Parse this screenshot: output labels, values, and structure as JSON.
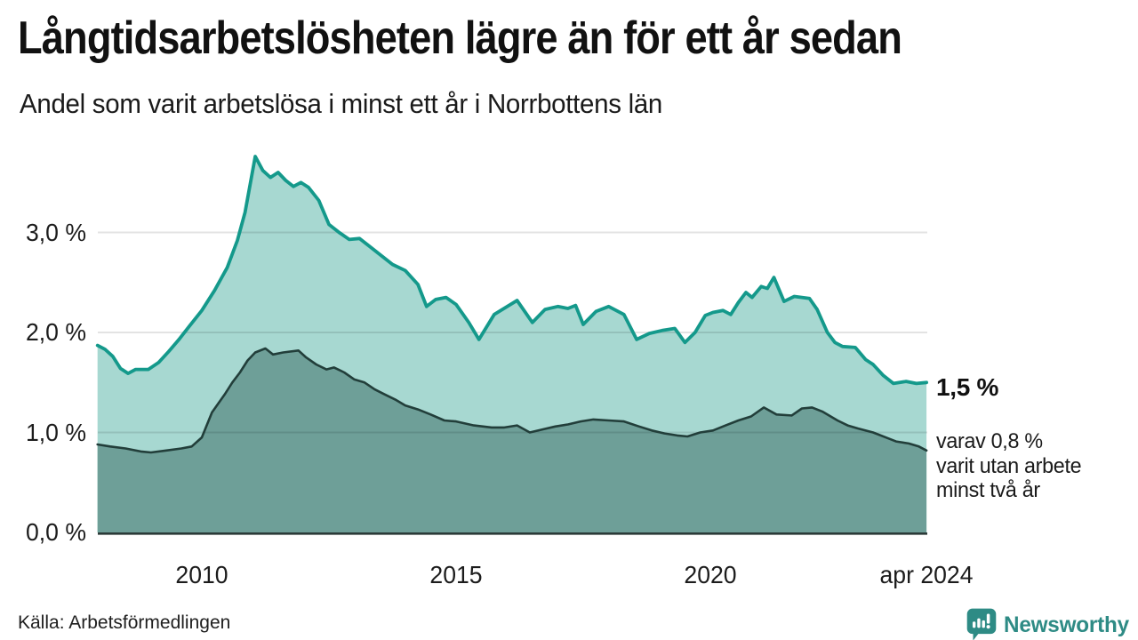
{
  "header": {
    "title": "Långtidsarbetslösheten lägre än för ett år sedan",
    "subtitle": "Andel som varit arbetslösa i minst ett år i Norrbottens län"
  },
  "chart_data": {
    "type": "area",
    "title": "Långtidsarbetslösheten lägre än för ett år sedan",
    "subtitle": "Andel som varit arbetslösa i minst ett år i Norrbottens län",
    "unit": "%",
    "x_axis": {
      "range": [
        2007.95,
        2024.29
      ],
      "ticks": [
        {
          "label": "2010",
          "year": 2010
        },
        {
          "label": "2015",
          "year": 2015
        },
        {
          "label": "2020",
          "year": 2020
        },
        {
          "label": "apr 2024",
          "year": 2024.25
        }
      ]
    },
    "y_axis": {
      "range": [
        0,
        3.9
      ],
      "gridlines": [
        1,
        2,
        3
      ],
      "ticks": [
        {
          "label": "0,0 %",
          "value": 0
        },
        {
          "label": "1,0 %",
          "value": 1
        },
        {
          "label": "2,0 %",
          "value": 2
        },
        {
          "label": "3,0 %",
          "value": 3
        }
      ]
    },
    "series": [
      {
        "name": "Arbetslösa minst ett år",
        "current_value_label": "1,5 %",
        "color": "#14998b",
        "fill": "#a7d8d1",
        "points": [
          [
            2007.95,
            1.87
          ],
          [
            2008.1,
            1.83
          ],
          [
            2008.25,
            1.76
          ],
          [
            2008.4,
            1.64
          ],
          [
            2008.55,
            1.59
          ],
          [
            2008.7,
            1.63
          ],
          [
            2008.95,
            1.63
          ],
          [
            2009.15,
            1.7
          ],
          [
            2009.35,
            1.81
          ],
          [
            2009.55,
            1.93
          ],
          [
            2009.75,
            2.06
          ],
          [
            2010.0,
            2.22
          ],
          [
            2010.25,
            2.42
          ],
          [
            2010.5,
            2.65
          ],
          [
            2010.7,
            2.92
          ],
          [
            2010.85,
            3.2
          ],
          [
            2011.05,
            3.76
          ],
          [
            2011.2,
            3.62
          ],
          [
            2011.35,
            3.55
          ],
          [
            2011.5,
            3.6
          ],
          [
            2011.65,
            3.52
          ],
          [
            2011.8,
            3.46
          ],
          [
            2011.95,
            3.5
          ],
          [
            2012.1,
            3.45
          ],
          [
            2012.3,
            3.32
          ],
          [
            2012.5,
            3.08
          ],
          [
            2012.7,
            3.0
          ],
          [
            2012.9,
            2.93
          ],
          [
            2013.1,
            2.94
          ],
          [
            2013.3,
            2.86
          ],
          [
            2013.5,
            2.78
          ],
          [
            2013.75,
            2.68
          ],
          [
            2014.0,
            2.62
          ],
          [
            2014.25,
            2.48
          ],
          [
            2014.42,
            2.26
          ],
          [
            2014.6,
            2.33
          ],
          [
            2014.8,
            2.35
          ],
          [
            2015.0,
            2.28
          ],
          [
            2015.25,
            2.1
          ],
          [
            2015.45,
            1.93
          ],
          [
            2015.75,
            2.18
          ],
          [
            2016.2,
            2.32
          ],
          [
            2016.5,
            2.1
          ],
          [
            2016.75,
            2.23
          ],
          [
            2017.0,
            2.26
          ],
          [
            2017.2,
            2.24
          ],
          [
            2017.35,
            2.27
          ],
          [
            2017.5,
            2.08
          ],
          [
            2017.75,
            2.21
          ],
          [
            2018.0,
            2.26
          ],
          [
            2018.3,
            2.18
          ],
          [
            2018.55,
            1.93
          ],
          [
            2018.8,
            1.99
          ],
          [
            2019.05,
            2.02
          ],
          [
            2019.3,
            2.04
          ],
          [
            2019.5,
            1.9
          ],
          [
            2019.7,
            2.0
          ],
          [
            2019.9,
            2.17
          ],
          [
            2020.05,
            2.2
          ],
          [
            2020.25,
            2.22
          ],
          [
            2020.4,
            2.18
          ],
          [
            2020.55,
            2.3
          ],
          [
            2020.7,
            2.4
          ],
          [
            2020.82,
            2.35
          ],
          [
            2021.0,
            2.46
          ],
          [
            2021.12,
            2.44
          ],
          [
            2021.25,
            2.55
          ],
          [
            2021.45,
            2.31
          ],
          [
            2021.65,
            2.36
          ],
          [
            2021.95,
            2.34
          ],
          [
            2022.1,
            2.23
          ],
          [
            2022.3,
            2.0
          ],
          [
            2022.45,
            1.9
          ],
          [
            2022.6,
            1.86
          ],
          [
            2022.85,
            1.85
          ],
          [
            2023.05,
            1.73
          ],
          [
            2023.2,
            1.68
          ],
          [
            2023.4,
            1.57
          ],
          [
            2023.6,
            1.49
          ],
          [
            2023.85,
            1.51
          ],
          [
            2024.05,
            1.49
          ],
          [
            2024.25,
            1.5
          ]
        ]
      },
      {
        "name": "varav arbetslösa minst två år",
        "current_value_label": "0,8 %",
        "color": "#223e3a",
        "fill": "#6e9f98",
        "points": [
          [
            2007.95,
            0.88
          ],
          [
            2008.2,
            0.86
          ],
          [
            2008.5,
            0.84
          ],
          [
            2008.8,
            0.81
          ],
          [
            2009.0,
            0.8
          ],
          [
            2009.3,
            0.82
          ],
          [
            2009.6,
            0.84
          ],
          [
            2009.8,
            0.86
          ],
          [
            2010.0,
            0.95
          ],
          [
            2010.2,
            1.2
          ],
          [
            2010.45,
            1.38
          ],
          [
            2010.6,
            1.5
          ],
          [
            2010.75,
            1.6
          ],
          [
            2010.9,
            1.72
          ],
          [
            2011.05,
            1.8
          ],
          [
            2011.25,
            1.84
          ],
          [
            2011.4,
            1.78
          ],
          [
            2011.6,
            1.8
          ],
          [
            2011.9,
            1.82
          ],
          [
            2012.05,
            1.75
          ],
          [
            2012.25,
            1.68
          ],
          [
            2012.45,
            1.63
          ],
          [
            2012.6,
            1.65
          ],
          [
            2012.8,
            1.6
          ],
          [
            2013.0,
            1.53
          ],
          [
            2013.2,
            1.5
          ],
          [
            2013.4,
            1.43
          ],
          [
            2013.6,
            1.38
          ],
          [
            2013.8,
            1.33
          ],
          [
            2014.0,
            1.27
          ],
          [
            2014.25,
            1.23
          ],
          [
            2014.5,
            1.18
          ],
          [
            2014.77,
            1.12
          ],
          [
            2015.0,
            1.11
          ],
          [
            2015.35,
            1.07
          ],
          [
            2015.7,
            1.05
          ],
          [
            2015.95,
            1.05
          ],
          [
            2016.2,
            1.07
          ],
          [
            2016.45,
            1.0
          ],
          [
            2016.7,
            1.03
          ],
          [
            2016.95,
            1.06
          ],
          [
            2017.2,
            1.08
          ],
          [
            2017.45,
            1.11
          ],
          [
            2017.7,
            1.13
          ],
          [
            2018.0,
            1.12
          ],
          [
            2018.3,
            1.11
          ],
          [
            2018.6,
            1.06
          ],
          [
            2018.85,
            1.02
          ],
          [
            2019.1,
            0.99
          ],
          [
            2019.35,
            0.97
          ],
          [
            2019.55,
            0.96
          ],
          [
            2019.8,
            1.0
          ],
          [
            2020.05,
            1.02
          ],
          [
            2020.3,
            1.07
          ],
          [
            2020.55,
            1.12
          ],
          [
            2020.8,
            1.16
          ],
          [
            2021.05,
            1.25
          ],
          [
            2021.3,
            1.18
          ],
          [
            2021.6,
            1.17
          ],
          [
            2021.8,
            1.24
          ],
          [
            2022.0,
            1.25
          ],
          [
            2022.2,
            1.21
          ],
          [
            2022.5,
            1.12
          ],
          [
            2022.7,
            1.07
          ],
          [
            2022.9,
            1.04
          ],
          [
            2023.2,
            1.0
          ],
          [
            2023.45,
            0.95
          ],
          [
            2023.65,
            0.91
          ],
          [
            2023.9,
            0.89
          ],
          [
            2024.1,
            0.86
          ],
          [
            2024.25,
            0.82
          ]
        ]
      }
    ],
    "annotation": {
      "value_label": "1,5 %",
      "detail_lines": [
        "varav 0,8 %",
        "varit utan arbete",
        "minst två år"
      ]
    },
    "legend_position": "none",
    "grid": true
  },
  "footer": {
    "source": "Källa: Arbetsförmedlingen",
    "brand": "Newsworthy"
  },
  "colors": {
    "accent_teal": "#14998b",
    "fill_light": "#a7d8d1",
    "fill_dark": "#6e9f98",
    "line_dark": "#223e3a",
    "axis": "#2b3a38",
    "grid": "#e3e3e3",
    "grid_overlay": "rgba(0,0,0,0.11)",
    "brand": "#2e8b85",
    "text": "#1a1a1a"
  }
}
